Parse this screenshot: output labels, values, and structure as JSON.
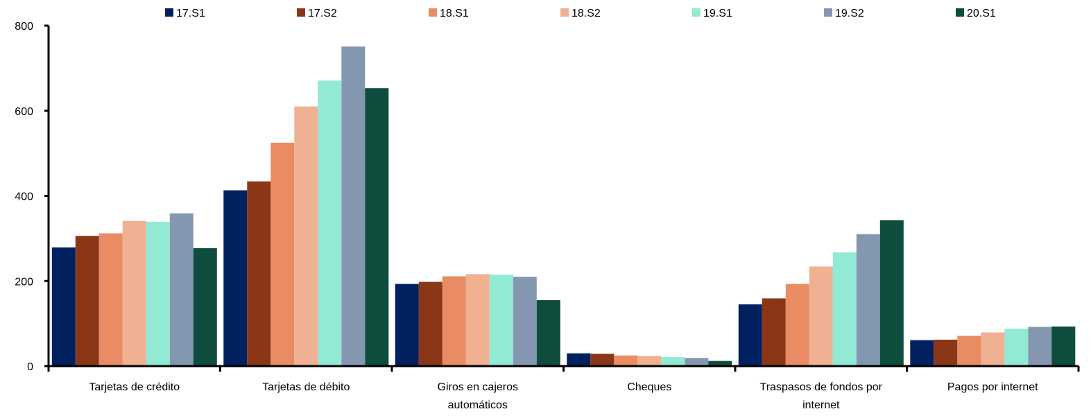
{
  "chart_data": {
    "type": "bar",
    "categories": [
      [
        "Tarjetas de crédito"
      ],
      [
        "Tarjetas de débito"
      ],
      [
        "Giros en cajeros",
        "automáticos"
      ],
      [
        "Cheques"
      ],
      [
        "Traspasos de fondos por",
        "internet"
      ],
      [
        "Pagos por internet"
      ]
    ],
    "series": [
      {
        "name": "17.S1",
        "color": "#002060",
        "values": [
          279,
          413,
          193,
          30,
          145,
          61
        ]
      },
      {
        "name": "17.S2",
        "color": "#8B3717",
        "values": [
          306,
          434,
          198,
          29,
          159,
          62
        ]
      },
      {
        "name": "18.S1",
        "color": "#E98C64",
        "values": [
          312,
          525,
          211,
          25,
          193,
          71
        ]
      },
      {
        "name": "18.S2",
        "color": "#F0B092",
        "values": [
          341,
          610,
          216,
          24,
          234,
          79
        ]
      },
      {
        "name": "19.S1",
        "color": "#92EAD4",
        "values": [
          339,
          671,
          215,
          21,
          267,
          88
        ]
      },
      {
        "name": "19.S2",
        "color": "#8497B0",
        "values": [
          359,
          751,
          210,
          19,
          310,
          92
        ]
      },
      {
        "name": "20.S1",
        "color": "#0E4C3D",
        "values": [
          277,
          653,
          155,
          12,
          343,
          93
        ]
      }
    ],
    "yticks": [
      "0",
      "200",
      "400",
      "600",
      "800"
    ],
    "ylim": [
      0,
      800
    ],
    "title": "",
    "xlabel": "",
    "ylabel": "",
    "legend_position": "top",
    "grid": false
  }
}
